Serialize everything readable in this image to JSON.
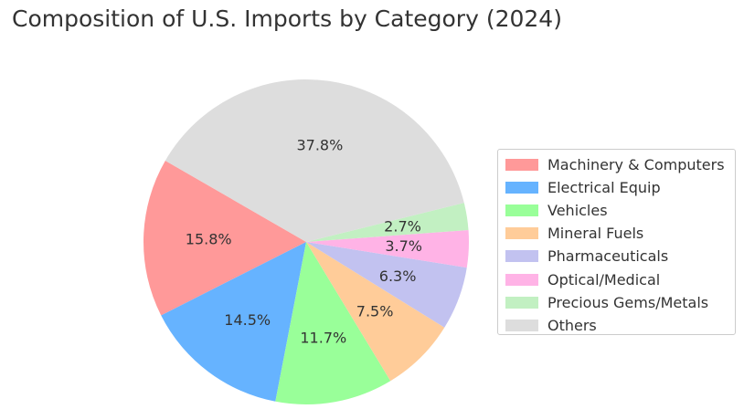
{
  "chart_data": {
    "type": "pie",
    "title": "Composition of U.S. Imports by Category (2024)",
    "categories": [
      "Machinery & Computers",
      "Electrical Equip",
      "Vehicles",
      "Mineral Fuels",
      "Pharmaceuticals",
      "Optical/Medical",
      "Precious Gems/Metals",
      "Others"
    ],
    "values": [
      15.8,
      14.5,
      11.7,
      7.5,
      6.3,
      3.7,
      2.7,
      37.8
    ],
    "labels": [
      "15.8%",
      "14.5%",
      "11.7%",
      "7.5%",
      "6.3%",
      "3.7%",
      "2.7%",
      "37.8%"
    ],
    "colors": [
      "#ff9999",
      "#66b3ff",
      "#99ff99",
      "#ffcc99",
      "#c2c2f0",
      "#ffb3e6",
      "#c2f0c2",
      "#dddddd"
    ],
    "start_angle_deg": 150,
    "direction": "counterclockwise",
    "legend_position": "right"
  }
}
